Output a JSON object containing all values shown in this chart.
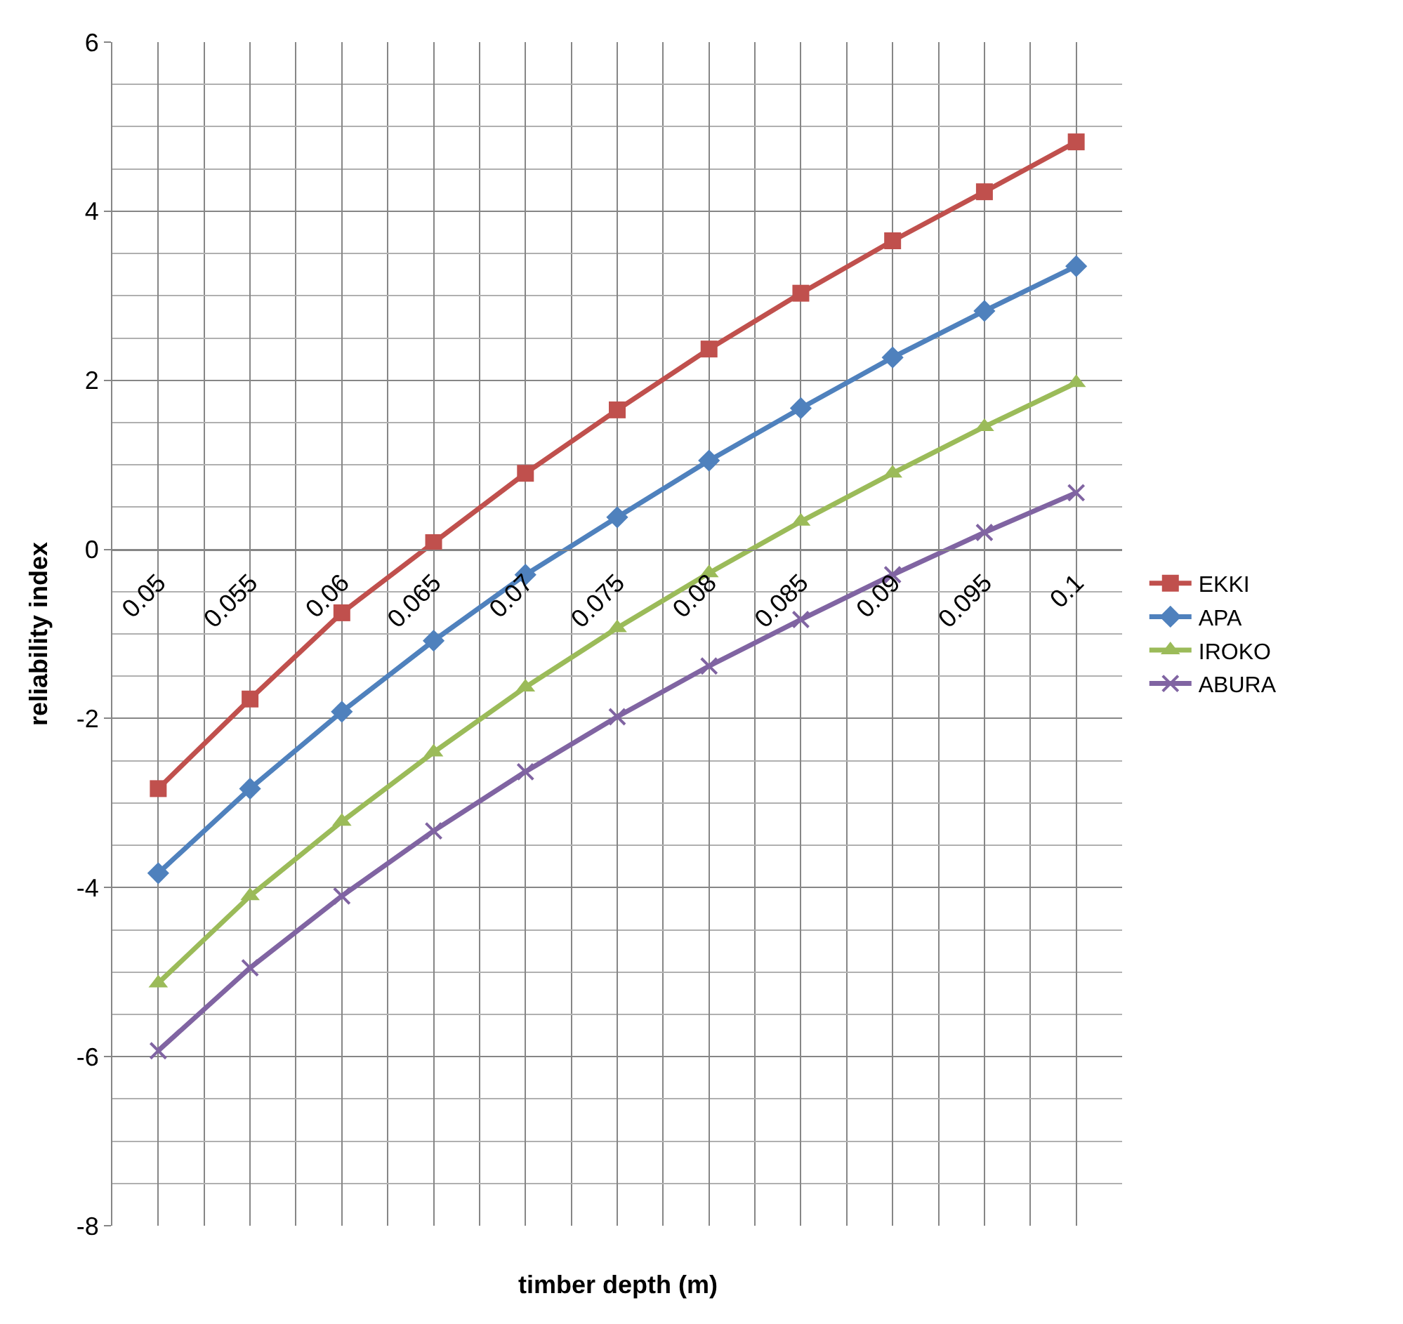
{
  "chart_data": {
    "type": "line",
    "xlabel": "timber depth (m)",
    "ylabel": "reliability index",
    "categories": [
      "0.05",
      "0.055",
      "0.06",
      "0.065",
      "0.07",
      "0.075",
      "0.08",
      "0.085",
      "0.09",
      "0.095",
      "0.1"
    ],
    "series": [
      {
        "name": "EKKI",
        "color": "#c0504d",
        "marker": "square",
        "values": [
          -2.83,
          -1.77,
          -0.75,
          0.08,
          0.9,
          1.65,
          2.37,
          3.03,
          3.65,
          4.23,
          4.82
        ]
      },
      {
        "name": "APA",
        "color": "#4f81bd",
        "marker": "diamond",
        "values": [
          -3.83,
          -2.83,
          -1.92,
          -1.08,
          -0.3,
          0.38,
          1.05,
          1.67,
          2.27,
          2.82,
          3.35
        ]
      },
      {
        "name": "IROKO",
        "color": "#9bbb59",
        "marker": "triangle",
        "values": [
          -5.13,
          -4.1,
          -3.22,
          -2.4,
          -1.63,
          -0.93,
          -0.28,
          0.33,
          0.9,
          1.45,
          1.97
        ]
      },
      {
        "name": "ABURA",
        "color": "#8064a2",
        "marker": "cross",
        "values": [
          -5.93,
          -4.95,
          -4.1,
          -3.33,
          -2.63,
          -1.98,
          -1.38,
          -0.83,
          -0.3,
          0.2,
          0.67
        ]
      }
    ],
    "ylim": [
      -8,
      6
    ],
    "yticks": [
      -8,
      -6,
      -4,
      -2,
      0,
      2,
      4,
      6
    ],
    "grid": true,
    "legend": "right",
    "line_style": "solid"
  }
}
